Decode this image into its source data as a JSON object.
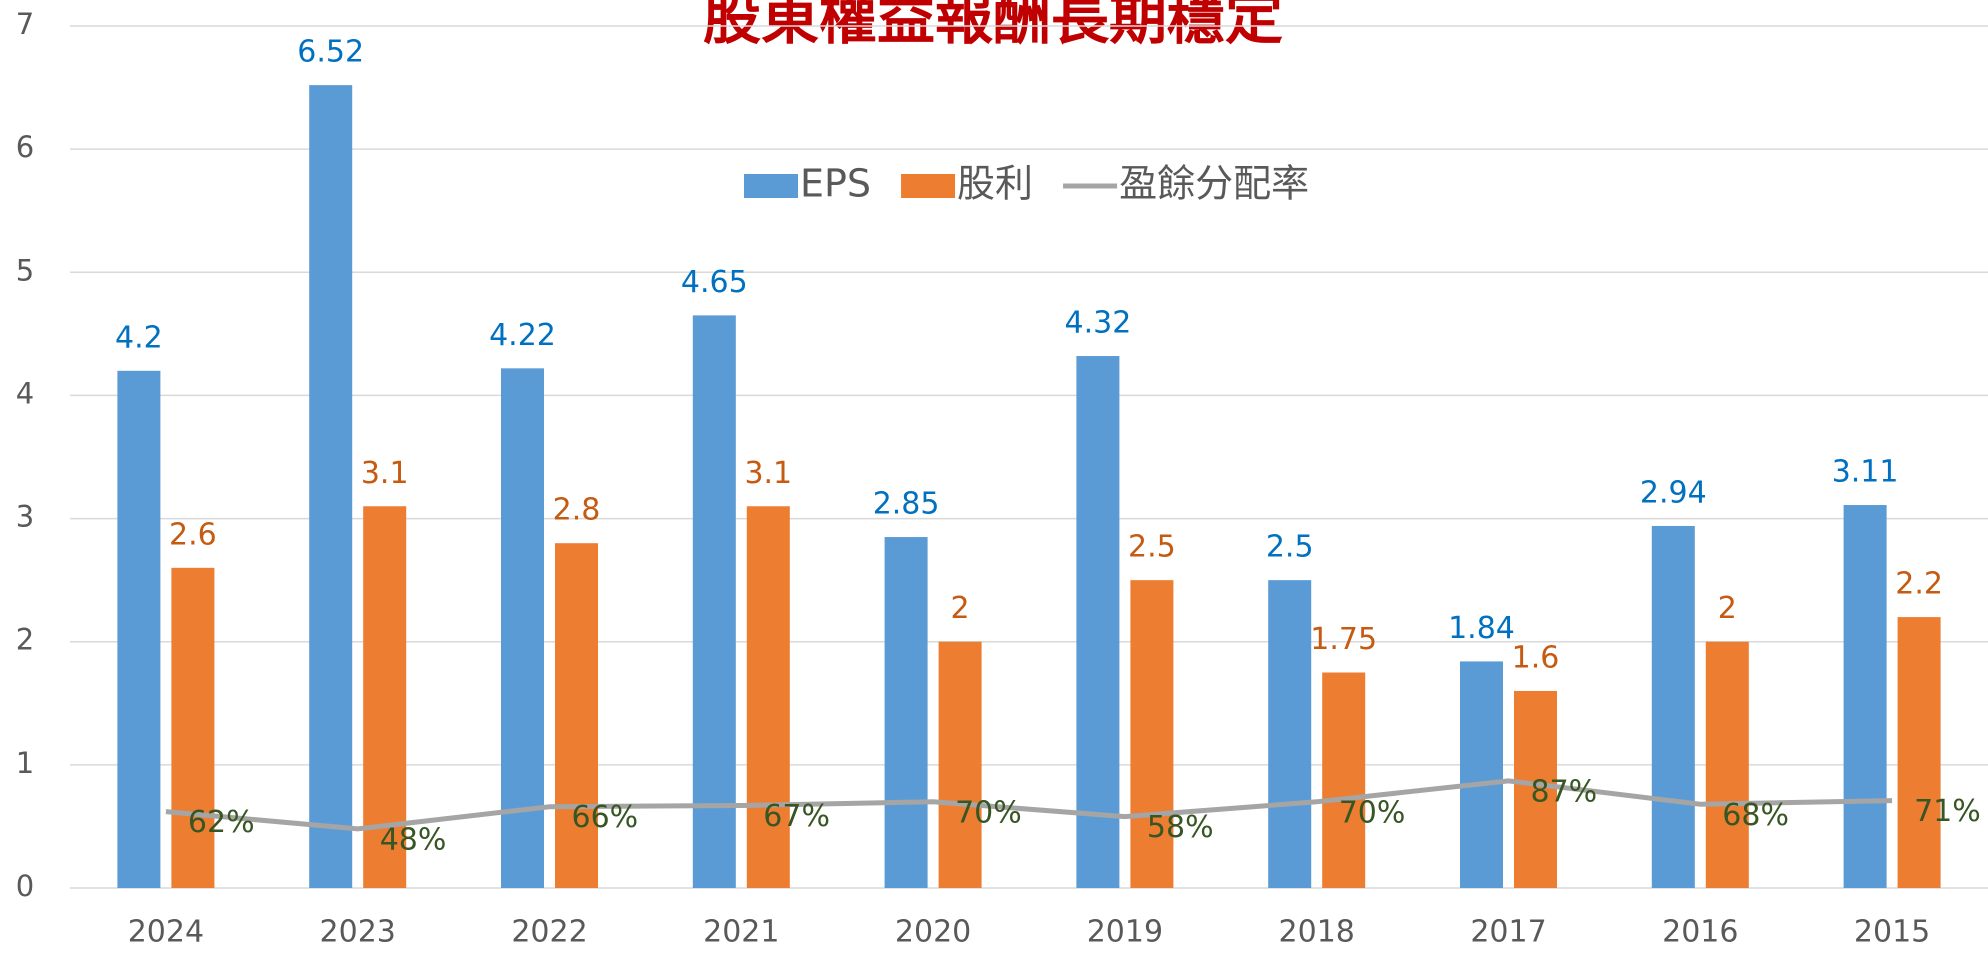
{
  "chart_data": {
    "type": "bar",
    "title": "股東權益報酬長期穩定",
    "categories": [
      "2024",
      "2023",
      "2022",
      "2021",
      "2020",
      "2019",
      "2018",
      "2017",
      "2016",
      "2015"
    ],
    "series": [
      {
        "name": "EPS",
        "type": "bar",
        "color": "#5b9bd5",
        "label_color": "#0070c0",
        "values": [
          4.2,
          6.52,
          4.22,
          4.65,
          2.85,
          4.32,
          2.5,
          1.84,
          2.94,
          3.11
        ]
      },
      {
        "name": "股利",
        "type": "bar",
        "color": "#ed7d31",
        "label_color": "#c55a11",
        "values": [
          2.6,
          3.1,
          2.8,
          3.1,
          2,
          2.5,
          1.75,
          1.6,
          2,
          2.2
        ]
      },
      {
        "name": "盈餘分配率",
        "type": "line",
        "color": "#a5a5a5",
        "label_color": "#375623",
        "values": [
          0.62,
          0.48,
          0.66,
          0.67,
          0.7,
          0.58,
          0.7,
          0.87,
          0.68,
          0.71
        ],
        "value_labels": [
          "62%",
          "48%",
          "66%",
          "67%",
          "70%",
          "58%",
          "70%",
          "87%",
          "68%",
          "71%"
        ]
      }
    ],
    "ylim": [
      0,
      7
    ],
    "yticks": [
      0,
      1,
      2,
      3,
      4,
      5,
      6,
      7
    ],
    "grid": true,
    "legend": "top"
  }
}
